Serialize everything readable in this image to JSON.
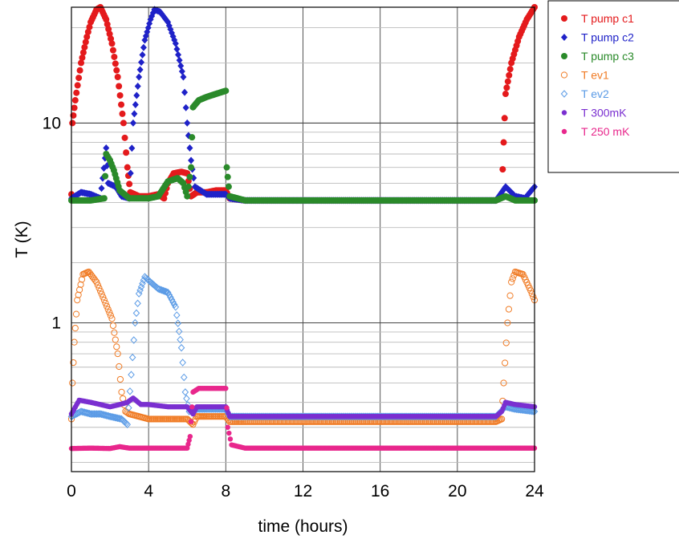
{
  "chart_data": {
    "type": "scatter",
    "xlabel": "time (hours)",
    "ylabel": "T (K)",
    "xlim": [
      0,
      24
    ],
    "ylim": [
      0.18,
      38
    ],
    "yscale": "log",
    "grid": true,
    "legend_position": "top-right, outside plot",
    "x_ticks": [
      "0",
      "4",
      "8",
      "12",
      "16",
      "20",
      "24"
    ],
    "y_ticks": [
      {
        "value": 1,
        "label": "1"
      },
      {
        "value": 10,
        "label": "10"
      }
    ],
    "series": [
      {
        "name": "T pump c1",
        "color": "#e41a1c",
        "marker": "filled-circle",
        "points": [
          [
            0,
            4.4
          ],
          [
            0.05,
            10
          ],
          [
            0.2,
            13
          ],
          [
            0.5,
            20
          ],
          [
            0.8,
            27
          ],
          [
            1,
            32
          ],
          [
            1.3,
            37
          ],
          [
            1.5,
            38
          ],
          [
            1.8,
            33
          ],
          [
            2.1,
            25
          ],
          [
            2.4,
            17
          ],
          [
            2.7,
            10
          ],
          [
            2.9,
            6
          ],
          [
            3.05,
            4.5
          ],
          [
            3.5,
            4.3
          ],
          [
            4,
            4.3
          ],
          [
            4.5,
            4.4
          ],
          [
            4.8,
            4.2
          ],
          [
            5,
            5
          ],
          [
            5.3,
            5.6
          ],
          [
            5.7,
            5.7
          ],
          [
            6,
            5.6
          ],
          [
            6.2,
            4.3
          ],
          [
            6.5,
            4.5
          ],
          [
            7,
            4.5
          ],
          [
            7.5,
            4.6
          ],
          [
            8,
            4.6
          ],
          [
            8.2,
            4.2
          ],
          [
            9,
            4.1
          ],
          [
            12,
            4.1
          ],
          [
            16,
            4.1
          ],
          [
            20,
            4.1
          ],
          [
            22,
            4.1
          ],
          [
            22.3,
            4.3
          ],
          [
            22.4,
            8
          ],
          [
            22.5,
            14
          ],
          [
            22.8,
            20
          ],
          [
            23.2,
            27
          ],
          [
            23.6,
            33
          ],
          [
            24,
            38
          ]
        ]
      },
      {
        "name": "T pump c2",
        "color": "#1f22c8",
        "marker": "filled-diamond",
        "points": [
          [
            0,
            4.2
          ],
          [
            0.5,
            4.5
          ],
          [
            1,
            4.4
          ],
          [
            1.5,
            4.2
          ],
          [
            1.8,
            7.5
          ],
          [
            1.9,
            5
          ],
          [
            2.3,
            4.8
          ],
          [
            2.6,
            4.3
          ],
          [
            3,
            4.2
          ],
          [
            3.2,
            10
          ],
          [
            3.5,
            17
          ],
          [
            3.8,
            26
          ],
          [
            4.1,
            33
          ],
          [
            4.3,
            37
          ],
          [
            4.6,
            36
          ],
          [
            5,
            32
          ],
          [
            5.4,
            25
          ],
          [
            5.8,
            17
          ],
          [
            6,
            10
          ],
          [
            6.2,
            6.5
          ],
          [
            6.4,
            4.8
          ],
          [
            7,
            4.4
          ],
          [
            8,
            4.4
          ],
          [
            8.2,
            4.2
          ],
          [
            9,
            4.1
          ],
          [
            12,
            4.1
          ],
          [
            16,
            4.1
          ],
          [
            20,
            4.1
          ],
          [
            22,
            4.1
          ],
          [
            22.5,
            4.8
          ],
          [
            23,
            4.3
          ],
          [
            23.5,
            4.2
          ],
          [
            24,
            4.8
          ]
        ]
      },
      {
        "name": "T pump c3",
        "color": "#2a8a2a",
        "marker": "filled-circle",
        "points": [
          [
            0,
            4.1
          ],
          [
            1,
            4.1
          ],
          [
            1.7,
            4.2
          ],
          [
            1.8,
            7
          ],
          [
            2,
            6.5
          ],
          [
            2.2,
            5.8
          ],
          [
            2.5,
            4.6
          ],
          [
            3,
            4.2
          ],
          [
            4,
            4.2
          ],
          [
            4.5,
            4.3
          ],
          [
            5,
            5.1
          ],
          [
            5.5,
            5.3
          ],
          [
            5.8,
            5.0
          ],
          [
            6,
            4.3
          ],
          [
            6.2,
            6
          ],
          [
            6.3,
            12
          ],
          [
            6.6,
            13
          ],
          [
            7,
            13.5
          ],
          [
            7.5,
            14
          ],
          [
            8,
            14.5
          ],
          [
            8.05,
            6
          ],
          [
            8.2,
            4.3
          ],
          [
            9,
            4.1
          ],
          [
            12,
            4.1
          ],
          [
            16,
            4.1
          ],
          [
            20,
            4.1
          ],
          [
            22,
            4.1
          ],
          [
            22.5,
            4.3
          ],
          [
            23,
            4.1
          ],
          [
            24,
            4.1
          ]
        ]
      },
      {
        "name": "T ev1",
        "color": "#f07c26",
        "marker": "open-circle",
        "points": [
          [
            0,
            0.33
          ],
          [
            0.05,
            0.5
          ],
          [
            0.15,
            0.8
          ],
          [
            0.3,
            1.3
          ],
          [
            0.6,
            1.75
          ],
          [
            0.9,
            1.8
          ],
          [
            1.3,
            1.6
          ],
          [
            1.7,
            1.3
          ],
          [
            2.1,
            1.05
          ],
          [
            2.4,
            0.7
          ],
          [
            2.6,
            0.45
          ],
          [
            2.8,
            0.36
          ],
          [
            3,
            0.35
          ],
          [
            4,
            0.33
          ],
          [
            5,
            0.33
          ],
          [
            6,
            0.33
          ],
          [
            6.3,
            0.31
          ],
          [
            6.5,
            0.34
          ],
          [
            7,
            0.34
          ],
          [
            8,
            0.34
          ],
          [
            8.2,
            0.32
          ],
          [
            9,
            0.32
          ],
          [
            12,
            0.32
          ],
          [
            16,
            0.32
          ],
          [
            20,
            0.32
          ],
          [
            22,
            0.32
          ],
          [
            22.3,
            0.33
          ],
          [
            22.4,
            0.5
          ],
          [
            22.6,
            1.0
          ],
          [
            22.8,
            1.6
          ],
          [
            23,
            1.8
          ],
          [
            23.4,
            1.75
          ],
          [
            23.8,
            1.45
          ],
          [
            24,
            1.3
          ]
        ]
      },
      {
        "name": "T ev2",
        "color": "#5b9be6",
        "marker": "open-diamond",
        "points": [
          [
            0,
            0.34
          ],
          [
            0.5,
            0.36
          ],
          [
            1,
            0.35
          ],
          [
            1.5,
            0.35
          ],
          [
            2,
            0.34
          ],
          [
            2.6,
            0.33
          ],
          [
            2.9,
            0.31
          ],
          [
            3.1,
            0.55
          ],
          [
            3.3,
            1.0
          ],
          [
            3.5,
            1.4
          ],
          [
            3.8,
            1.7
          ],
          [
            4.1,
            1.6
          ],
          [
            4.5,
            1.48
          ],
          [
            5,
            1.42
          ],
          [
            5.4,
            1.2
          ],
          [
            5.7,
            0.75
          ],
          [
            5.9,
            0.45
          ],
          [
            6.1,
            0.36
          ],
          [
            6.5,
            0.37
          ],
          [
            7,
            0.37
          ],
          [
            8,
            0.37
          ],
          [
            8.2,
            0.34
          ],
          [
            9,
            0.34
          ],
          [
            12,
            0.34
          ],
          [
            16,
            0.34
          ],
          [
            20,
            0.34
          ],
          [
            22,
            0.34
          ],
          [
            22.5,
            0.38
          ],
          [
            23,
            0.37
          ],
          [
            24,
            0.36
          ]
        ]
      },
      {
        "name": "T 300mK",
        "color": "#7a2fd0",
        "marker": "small-filled-circle",
        "points": [
          [
            0,
            0.35
          ],
          [
            0.4,
            0.41
          ],
          [
            1,
            0.4
          ],
          [
            1.5,
            0.39
          ],
          [
            2,
            0.38
          ],
          [
            2.5,
            0.39
          ],
          [
            2.9,
            0.4
          ],
          [
            3.2,
            0.42
          ],
          [
            3.6,
            0.39
          ],
          [
            4,
            0.39
          ],
          [
            5,
            0.38
          ],
          [
            6,
            0.38
          ],
          [
            6.3,
            0.35
          ],
          [
            6.5,
            0.38
          ],
          [
            8,
            0.38
          ],
          [
            8.2,
            0.34
          ],
          [
            9,
            0.34
          ],
          [
            12,
            0.34
          ],
          [
            16,
            0.34
          ],
          [
            20,
            0.34
          ],
          [
            22,
            0.34
          ],
          [
            22.3,
            0.36
          ],
          [
            22.5,
            0.4
          ],
          [
            23,
            0.39
          ],
          [
            24,
            0.38
          ]
        ]
      },
      {
        "name": "T 250 mK",
        "color": "#e8278c",
        "marker": "small-filled-circle",
        "points": [
          [
            0,
            0.235
          ],
          [
            1,
            0.236
          ],
          [
            2,
            0.235
          ],
          [
            2.5,
            0.24
          ],
          [
            3,
            0.236
          ],
          [
            4,
            0.236
          ],
          [
            5,
            0.236
          ],
          [
            6,
            0.236
          ],
          [
            6.15,
            0.27
          ],
          [
            6.3,
            0.45
          ],
          [
            6.6,
            0.47
          ],
          [
            7,
            0.47
          ],
          [
            7.5,
            0.47
          ],
          [
            8,
            0.47
          ],
          [
            8.1,
            0.3
          ],
          [
            8.3,
            0.245
          ],
          [
            9,
            0.236
          ],
          [
            12,
            0.236
          ],
          [
            16,
            0.236
          ],
          [
            20,
            0.236
          ],
          [
            22,
            0.236
          ],
          [
            23,
            0.236
          ],
          [
            24,
            0.236
          ]
        ]
      }
    ]
  }
}
